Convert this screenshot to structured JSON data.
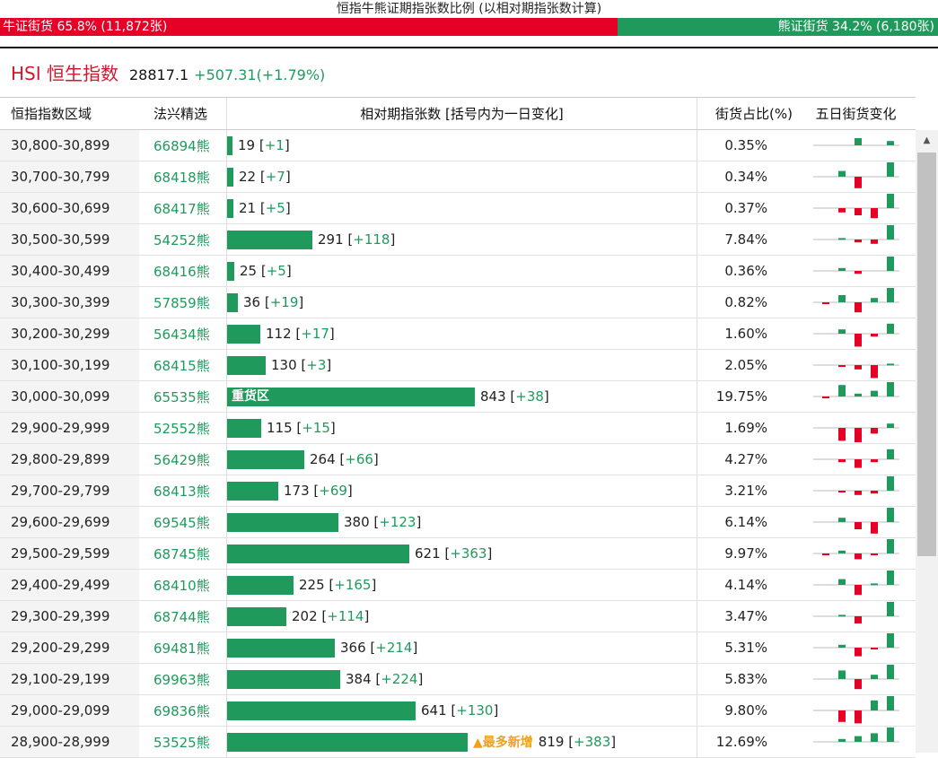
{
  "top_title": "恒指牛熊证期指张数比例 (以相对期指张数计算)",
  "ratio": {
    "bull_label": "牛证街货 65.8% (11,872张)",
    "bear_label": "熊证街货 34.2% (6,180张)",
    "bull_fraction": 0.658,
    "bull_color": "#e60026",
    "bear_color": "#1f9a5c"
  },
  "index": {
    "name": "HSI 恒生指数",
    "price": "28817.1",
    "change": "+507.31(+1.79%)"
  },
  "columns": {
    "range": "恒指指数区域",
    "code": "法兴精选",
    "contracts": "相对期指张数 [括号内为一日变化]",
    "pct": "街货占比(%)",
    "spark": "五日街货变化"
  },
  "max_contracts": 843,
  "rows": [
    {
      "range": "30,800-30,899",
      "code": "66894熊",
      "contracts": 19,
      "delta": "+1",
      "pct": "0.35%",
      "spark": [
        0,
        0,
        0.5,
        0,
        0.3
      ]
    },
    {
      "range": "30,700-30,799",
      "code": "68418熊",
      "contracts": 22,
      "delta": "+7",
      "pct": "0.34%",
      "spark": [
        0,
        0.4,
        -0.8,
        0,
        1
      ]
    },
    {
      "range": "30,600-30,699",
      "code": "68417熊",
      "contracts": 21,
      "delta": "+5",
      "pct": "0.37%",
      "spark": [
        0,
        -0.3,
        -0.5,
        -0.7,
        1
      ]
    },
    {
      "range": "30,500-30,599",
      "code": "54252熊",
      "contracts": 291,
      "delta": "+118",
      "pct": "7.84%",
      "spark": [
        0,
        0.1,
        -0.2,
        -0.3,
        1
      ]
    },
    {
      "range": "30,400-30,499",
      "code": "68416熊",
      "contracts": 25,
      "delta": "+5",
      "pct": "0.36%",
      "spark": [
        0,
        0.2,
        -0.2,
        0,
        1
      ]
    },
    {
      "range": "30,300-30,399",
      "code": "57859熊",
      "contracts": 36,
      "delta": "+19",
      "pct": "0.82%",
      "spark": [
        -0.1,
        0.5,
        -0.7,
        0.3,
        1
      ]
    },
    {
      "range": "30,200-30,299",
      "code": "56434熊",
      "contracts": 112,
      "delta": "+17",
      "pct": "1.60%",
      "spark": [
        0,
        0.3,
        -0.9,
        -0.2,
        0.7
      ]
    },
    {
      "range": "30,100-30,199",
      "code": "68415熊",
      "contracts": 130,
      "delta": "+3",
      "pct": "2.05%",
      "spark": [
        0,
        -0.1,
        -0.3,
        -0.9,
        0.1
      ]
    },
    {
      "range": "30,000-30,099",
      "code": "65535熊",
      "contracts": 843,
      "delta": "+38",
      "pct": "19.75%",
      "note_inbar": "重货区",
      "spark": [
        -0.1,
        0.8,
        0.2,
        0.4,
        1
      ]
    },
    {
      "range": "29,900-29,999",
      "code": "52552熊",
      "contracts": 115,
      "delta": "+15",
      "pct": "1.69%",
      "spark": [
        0,
        -0.9,
        -1,
        -0.4,
        0.3
      ]
    },
    {
      "range": "29,800-29,899",
      "code": "56429熊",
      "contracts": 264,
      "delta": "+66",
      "pct": "4.27%",
      "spark": [
        0,
        -0.2,
        -0.6,
        -0.2,
        0.7
      ]
    },
    {
      "range": "29,700-29,799",
      "code": "68413熊",
      "contracts": 173,
      "delta": "+69",
      "pct": "3.21%",
      "spark": [
        0,
        -0.1,
        -0.3,
        -0.2,
        1
      ]
    },
    {
      "range": "29,600-29,699",
      "code": "69545熊",
      "contracts": 380,
      "delta": "+123",
      "pct": "6.14%",
      "spark": [
        0,
        0.3,
        -0.5,
        -0.8,
        1
      ]
    },
    {
      "range": "29,500-29,599",
      "code": "68745熊",
      "contracts": 621,
      "delta": "+363",
      "pct": "9.97%",
      "spark": [
        -0.1,
        0.2,
        -0.4,
        -0.1,
        1
      ]
    },
    {
      "range": "29,400-29,499",
      "code": "68410熊",
      "contracts": 225,
      "delta": "+165",
      "pct": "4.14%",
      "spark": [
        0,
        0.4,
        -0.7,
        0.1,
        1
      ]
    },
    {
      "range": "29,300-29,399",
      "code": "68744熊",
      "contracts": 202,
      "delta": "+114",
      "pct": "3.47%",
      "spark": [
        0,
        0.1,
        -0.5,
        0,
        1
      ]
    },
    {
      "range": "29,200-29,299",
      "code": "69481熊",
      "contracts": 366,
      "delta": "+214",
      "pct": "5.31%",
      "spark": [
        0,
        0.2,
        -0.6,
        -0.1,
        1
      ]
    },
    {
      "range": "29,100-29,199",
      "code": "69963熊",
      "contracts": 384,
      "delta": "+224",
      "pct": "5.83%",
      "spark": [
        0,
        0.6,
        -0.7,
        0.3,
        1
      ]
    },
    {
      "range": "29,000-29,099",
      "code": "69836熊",
      "contracts": 641,
      "delta": "+130",
      "pct": "9.80%",
      "spark": [
        0,
        -0.8,
        -0.9,
        0.7,
        1
      ]
    },
    {
      "range": "28,900-28,999",
      "code": "53525熊",
      "contracts": 819,
      "delta": "+383",
      "pct": "12.69%",
      "note_outbar": "▲最多新增",
      "spark": [
        0,
        0.2,
        0.4,
        0.6,
        1
      ]
    }
  ],
  "scrollbar": {
    "up_arrow": "▲"
  }
}
